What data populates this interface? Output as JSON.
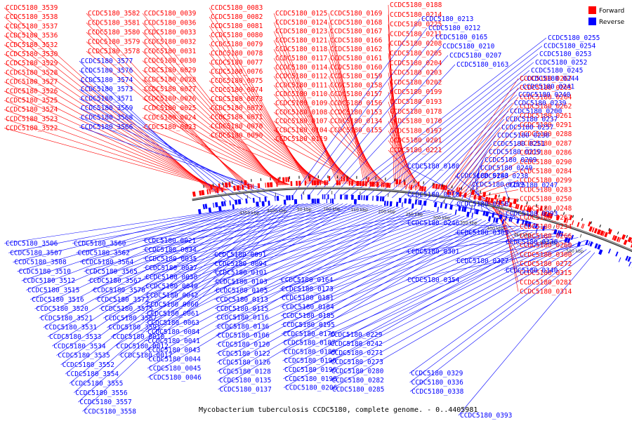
{
  "caption": "Mycobacterium tuberculosis CCDC5180, complete genome. - 0..4405981",
  "legend": [
    {
      "label": "Forward",
      "color": "#ff0000"
    },
    {
      "label": "Reverse",
      "color": "#0000ff"
    }
  ],
  "colors": {
    "forward": "#ff0000",
    "reverse": "#0000ff",
    "backbone": "#777777"
  },
  "tick_labels": [
    "4350 kbp",
    "4400 kbp",
    "50 kbp",
    "100 kbp",
    "150 kbp",
    "200 kbp",
    "250 kbp",
    "300 kbp",
    "350 kbp",
    "400 kbp",
    "450 kbp",
    "500 kbp",
    "550 kbp"
  ],
  "forward_label_columns": [
    [
      "CCDC5180_3539",
      "CCDC5180_3538",
      "CCDC5180_3537",
      "CCDC5180_3536",
      "CCDC5180_3532",
      "CCDC5180_3530",
      "CCDC5180_3529",
      "CCDC5180_3528",
      "CCDC5180_3527",
      "CCDC5180_3526",
      "CCDC5180_3525",
      "CCDC5180_3524",
      "CCDC5180_3523",
      "CCDC5180_3522"
    ],
    [
      "CCDC5180_3582",
      "CCDC5180_3581",
      "CCDC5180_3580",
      "CCDC5180_3579",
      "CCDC5180_3578"
    ],
    [
      "CCDC5180_0039",
      "CCDC5180_0036",
      "CCDC5180_0033",
      "CCDC5180_0032",
      "CCDC5180_0031",
      "CCDC5180_0030",
      "CCDC5180_0029",
      "CCDC5180_0028",
      "CCDC5180_0027",
      "CCDC5180_0026",
      "CCDC5180_0025",
      "CCDC5180_0024",
      "CCDC5180_0023"
    ],
    [
      "CCDC5180_0083",
      "CCDC5180_0082",
      "CCDC5180_0081",
      "CCDC5180_0080",
      "CCDC5180_0079",
      "CCDC5180_0078",
      "CCDC5180_0077",
      "CCDC5180_0076",
      "CCDC5180_0075",
      "CCDC5180_0074",
      "CCDC5180_0073",
      "CCDC5180_0072",
      "CCDC5180_0071",
      "CCDC5180_0070",
      "CCDC5180_0090"
    ],
    [
      "CCDC5180_0125",
      "CCDC5180_0124",
      "CCDC5180_0123",
      "CCDC5180_0121",
      "CCDC5180_0118",
      "CCDC5180_0117",
      "CCDC5180_0114",
      "CCDC5180_0112",
      "CCDC5180_0111",
      "CCDC5180_0110",
      "CCDC5180_0109",
      "CCDC5180_0108",
      "CCDC5180_0107",
      "CCDC5180_0104",
      "CCDC5180_0119"
    ],
    [
      "CCDC5180_0169",
      "CCDC5180_0168",
      "CCDC5180_0167",
      "CCDC5180_0166",
      "CCDC5180_0162",
      "CCDC5180_0161",
      "CCDC5180_0160",
      "CCDC5180_0159",
      "CCDC5180_0158",
      "CCDC5180_0157",
      "CCDC5180_0156",
      "CCDC5180_0153",
      "CCDC5180_0134",
      "CCDC5180_0155"
    ],
    [
      "CCDC5180_0188",
      "CCDC5180_0214",
      "CCDC5180_0225",
      "CCDC5180_0211",
      "CCDC5180_0208",
      "CCDC5180_0205",
      "CCDC5180_0204",
      "CCDC5180_0203",
      "CCDC5180_0202",
      "CCDC5180_0199",
      "CCDC5180_0193",
      "CCDC5180_0178",
      "CCDC5180_0170",
      "CCDC5180_0197",
      "CCDC5180_0201",
      "CCDC5180_0221"
    ],
    [
      "CCDC5180_0267",
      "CCDC5180_0265",
      "CCDC5180_0264",
      "CCDC5180_0262",
      "CCDC5180_0261",
      "CCDC5180_0291",
      "CCDC5180_0288",
      "CCDC5180_0287",
      "CCDC5180_0286",
      "CCDC5180_0290",
      "CCDC5180_0284",
      "CCDC5180_0299",
      "CCDC5180_0283",
      "CCDC5180_0250",
      "CCDC5180_0248",
      "CCDC5180_0263",
      "CCDC5180_0234",
      "CCDC5180_0266",
      "CCDC5180_0260",
      "CCDC5180_0300",
      "CCDC5180_0272",
      "CCDC5180_0315",
      "CCDC5180_0281",
      "CCDC5180_0314"
    ]
  ],
  "reverse_upper_labels": [
    "CCDC5180_3577",
    "CCDC5180_3576",
    "CCDC5180_3574",
    "CCDC5180_3573",
    "CCDC5180_3571",
    "CCDC5180_3569",
    "CCDC5180_3568",
    "CCDC5180_3566",
    "CCDC5180_0213",
    "CCDC5180_0212",
    "CCDC5180_0165",
    "CCDC5180_0210",
    "CCDC5180_0207",
    "CCDC5180_0163",
    "CCDC5180_0255",
    "CCDC5180_0254",
    "CCDC5180_0253",
    "CCDC5180_0252",
    "CCDC5180_0245",
    "CCDC5180_0244",
    "CCDC5180_0241",
    "CCDC5180_0240",
    "CCDC5180_0239",
    "CCDC5180_0200",
    "CCDC5180_0237",
    "CCDC5180_0257",
    "CCDC5180_0230",
    "CCDC5180_0251",
    "CCDC5180_0219",
    "CCDC5180_0209",
    "CCDC5180_0249",
    "CCDC5180_0238",
    "CCDC5180_0259",
    "CCDC5180_0180",
    "CCDC5180_0243",
    "CCDC5180_0247",
    "CCDC5180_0218",
    "CCDC5180_0258",
    "CCDC5180_0293",
    "CCDC5180_0246",
    "CCDC5180_0309",
    "CCDC5180_0330",
    "CCDC5180_0301",
    "CCDC5180_0327",
    "CCDC5180_0340",
    "CCDC5180_0354"
  ],
  "reverse_lower_labels": [
    "CCDC5180_3506",
    "CCDC5180_3507",
    "CCDC5180_3508",
    "CCDC5180_3510",
    "CCDC5180_3512",
    "CCDC5180_3515",
    "CCDC5180_3516",
    "CCDC5180_3520",
    "CCDC5180_3521",
    "CCDC5180_3531",
    "CCDC5180_3533",
    "CCDC5180_3534",
    "CCDC5180_3535",
    "CCDC5180_3552",
    "CCDC5180_3554",
    "CCDC5180_3555",
    "CCDC5180_3556",
    "CCDC5180_3557",
    "CCDC5180_3558",
    "CCDC5180_3560",
    "CCDC5180_3562",
    "CCDC5180_3564",
    "CCDC5180_3565",
    "CCDC5180_3567",
    "CCDC5180_3570",
    "CCDC5180_3572",
    "CCDC5180_3575",
    "CCDC5180_3587",
    "CCDC5180_3591",
    "CCDC5180_0010",
    "CCDC5180_0012",
    "CCDC5180_0017",
    "CCDC5180_0021",
    "CCDC5180_0034",
    "CCDC5180_0035",
    "CCDC5180_0037",
    "CCDC5180_0038",
    "CCDC5180_0040",
    "CCDC5180_0042",
    "CCDC5180_0060",
    "CCDC5180_0061",
    "CCDC5180_0063",
    "CCDC5180_0084",
    "CCDC5180_0041",
    "CCDC5180_0043",
    "CCDC5180_0044",
    "CCDC5180_0045",
    "CCDC5180_0046",
    "CCDC5180_0091",
    "CCDC5180_0094",
    "CCDC5180_0101",
    "CCDC5180_0103",
    "CCDC5180_0105",
    "CCDC5180_0113",
    "CCDC5180_0115",
    "CCDC5180_0116",
    "CCDC5180_0136",
    "CCDC5180_0106",
    "CCDC5180_0120",
    "CCDC5180_0122",
    "CCDC5180_0126",
    "CCDC5180_0128",
    "CCDC5180_0135",
    "CCDC5180_0137",
    "CCDC5180_0164",
    "CCDC5180_0173",
    "CCDC5180_0181",
    "CCDC5180_0184",
    "CCDC5180_0185",
    "CCDC5180_0195",
    "CCDC5180_0176",
    "CCDC5180_0187",
    "CCDC5180_0189",
    "CCDC5180_0190",
    "CCDC5180_0196",
    "CCDC5180_0198",
    "CCDC5180_0206",
    "CCDC5180_0229",
    "CCDC5180_0242",
    "CCDC5180_0271",
    "CCDC5180_0273",
    "CCDC5180_0280",
    "CCDC5180_0282",
    "CCDC5180_0285",
    "CCDC5180_0329",
    "CCDC5180_0336",
    "CCDC5180_0338",
    "CCDC5180_0393"
  ]
}
